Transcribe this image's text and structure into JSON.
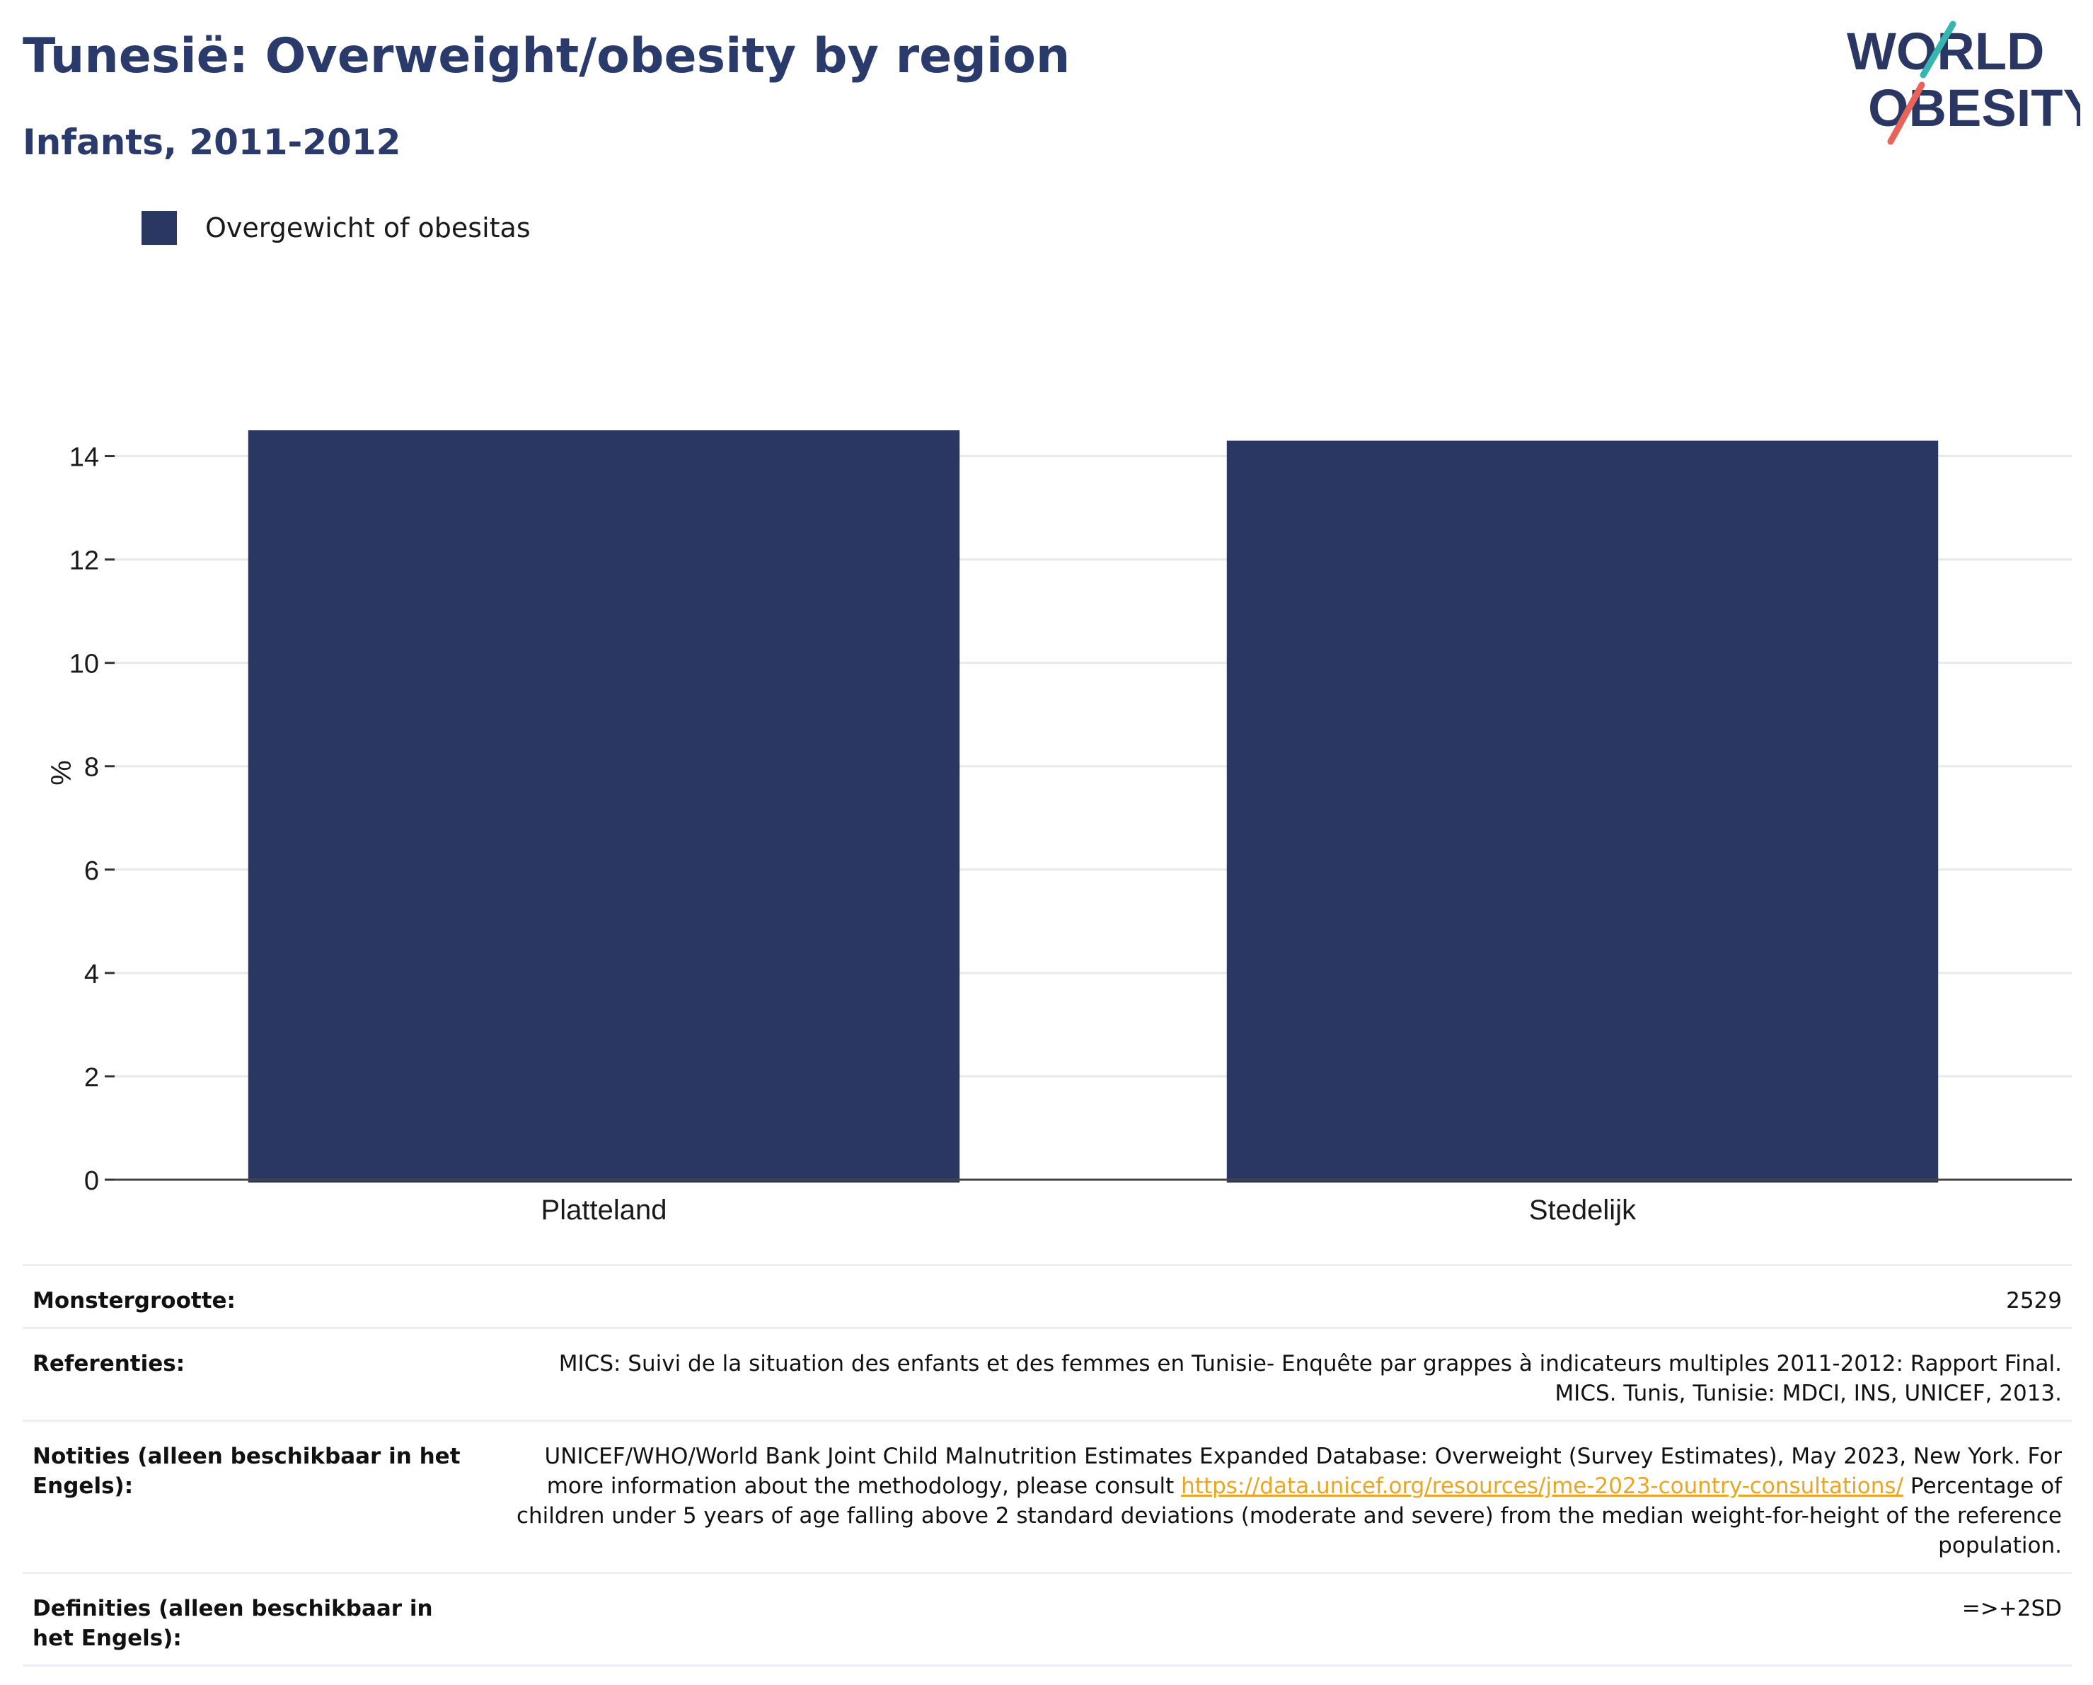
{
  "header": {
    "title": "Tunesië: Overweight/obesity by region",
    "subtitle": "Infants, 2011-2012"
  },
  "logo": {
    "line1": "WORLD",
    "line2": "OBESITY",
    "colors": {
      "text": "#2a3763",
      "slash_top": "#36b6b0",
      "slash_bottom": "#e8645a"
    }
  },
  "legend": {
    "label": "Overgewicht of obesitas",
    "color": "#2a3763"
  },
  "chart_data": {
    "type": "bar",
    "categories": [
      "Platteland",
      "Stedelijk"
    ],
    "series": [
      {
        "name": "Overgewicht of obesitas",
        "values": [
          14.5,
          14.3
        ],
        "color": "#2a3763"
      }
    ],
    "ylabel": "%",
    "xlabel": "",
    "ylim": [
      0,
      15.5
    ],
    "yticks": [
      0,
      2,
      4,
      6,
      8,
      10,
      12,
      14
    ],
    "grid": true,
    "legend_position": "top-left"
  },
  "info": {
    "sample_size": {
      "label": "Monstergrootte:",
      "value": "2529"
    },
    "references": {
      "label": "Referenties:",
      "value": "MICS: Suivi de la situation des enfants et des femmes en Tunisie- Enquête par grappes à indicateurs multiples 2011-2012: Rapport Final. MICS. Tunis, Tunisie: MDCI, INS, UNICEF, 2013."
    },
    "notes": {
      "label": "Notities (alleen beschikbaar in het Engels):",
      "value_before": "UNICEF/WHO/World Bank Joint Child Malnutrition Estimates Expanded Database: Overweight (Survey Estimates), May 2023, New York. For more information about the methodology, please consult ",
      "link": "https://data.unicef.org/resources/jme-2023-country-consultations/",
      "value_after": " Percentage of children under 5 years of age falling above 2 standard deviations (moderate and severe) from the median weight-for-height of the reference population."
    },
    "definitions": {
      "label": "Definities (alleen beschikbaar in het Engels):",
      "value": "=>+2SD"
    }
  }
}
